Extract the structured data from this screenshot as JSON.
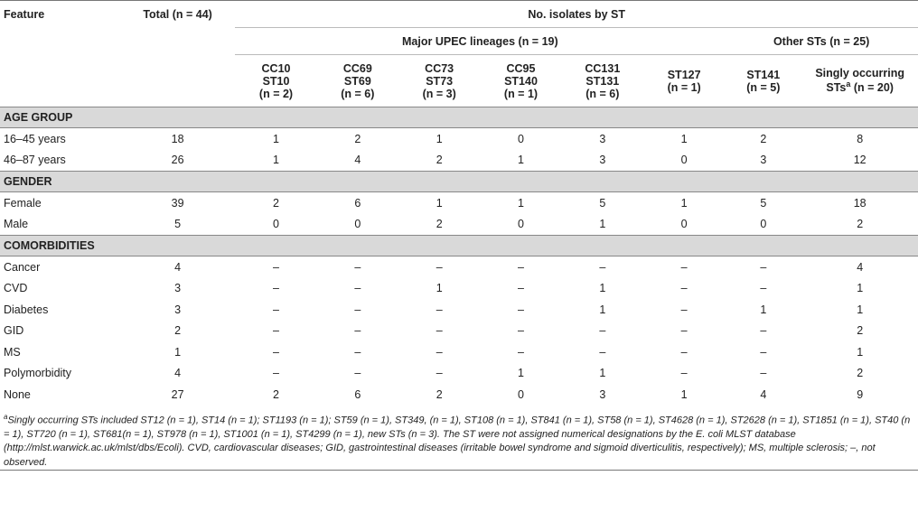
{
  "header": {
    "feature": "Feature",
    "total": "Total (n = 44)",
    "no_isolates": "No. isolates by ST",
    "major": "Major UPEC lineages (n = 19)",
    "other": "Other STs (n = 25)",
    "columns": [
      {
        "l1": "CC10",
        "l2": "ST10",
        "l3": "(n = 2)"
      },
      {
        "l1": "CC69",
        "l2": "ST69",
        "l3": "(n = 6)"
      },
      {
        "l1": "CC73",
        "l2": "ST73",
        "l3": "(n = 3)"
      },
      {
        "l1": "CC95",
        "l2": "ST140",
        "l3": "(n = 1)"
      },
      {
        "l1": "CC131",
        "l2": "ST131",
        "l3": "(n = 6)"
      },
      {
        "l1": "",
        "l2": "ST127",
        "l3": "(n = 1)"
      },
      {
        "l1": "",
        "l2": "ST141",
        "l3": "(n = 5)"
      },
      {
        "l1": "",
        "l2": "Singly occurring",
        "l3": "STs"
      }
    ],
    "last_sup": "a",
    "last_tail": " (n = 20)"
  },
  "sections": [
    {
      "title": "AGE GROUP",
      "rows": [
        {
          "label": "16–45 years",
          "values": [
            "18",
            "1",
            "2",
            "1",
            "0",
            "3",
            "1",
            "2",
            "8"
          ]
        },
        {
          "label": "46–87 years",
          "values": [
            "26",
            "1",
            "4",
            "2",
            "1",
            "3",
            "0",
            "3",
            "12"
          ]
        }
      ]
    },
    {
      "title": "GENDER",
      "rows": [
        {
          "label": "Female",
          "values": [
            "39",
            "2",
            "6",
            "1",
            "1",
            "5",
            "1",
            "5",
            "18"
          ]
        },
        {
          "label": "Male",
          "values": [
            "5",
            "0",
            "0",
            "2",
            "0",
            "1",
            "0",
            "0",
            "2"
          ]
        }
      ]
    },
    {
      "title": "COMORBIDITIES",
      "rows": [
        {
          "label": "Cancer",
          "values": [
            "4",
            "–",
            "–",
            "–",
            "–",
            "–",
            "–",
            "–",
            "4"
          ]
        },
        {
          "label": "CVD",
          "values": [
            "3",
            "–",
            "–",
            "1",
            "–",
            "1",
            "–",
            "–",
            "1"
          ]
        },
        {
          "label": "Diabetes",
          "values": [
            "3",
            "–",
            "–",
            "–",
            "–",
            "1",
            "–",
            "1",
            "1"
          ]
        },
        {
          "label": "GID",
          "values": [
            "2",
            "–",
            "–",
            "–",
            "–",
            "–",
            "–",
            "–",
            "2"
          ]
        },
        {
          "label": "MS",
          "values": [
            "1",
            "–",
            "–",
            "–",
            "–",
            "–",
            "–",
            "–",
            "1"
          ]
        },
        {
          "label": "Polymorbidity",
          "values": [
            "4",
            "–",
            "–",
            "–",
            "1",
            "1",
            "–",
            "–",
            "2"
          ]
        },
        {
          "label": "None",
          "values": [
            "27",
            "2",
            "6",
            "2",
            "0",
            "3",
            "1",
            "4",
            "9"
          ]
        }
      ]
    }
  ],
  "footnote": {
    "sup": "a",
    "text": "Singly occurring STs included ST12 (n = 1), ST14 (n = 1); ST1193 (n = 1); ST59 (n = 1), ST349, (n = 1), ST108 (n = 1), ST841 (n = 1), ST58 (n = 1), ST4628 (n = 1), ST2628 (n = 1), ST1851 (n = 1), ST40 (n = 1), ST720 (n = 1), ST681(n = 1), ST978 (n = 1), ST1001 (n = 1), ST4299 (n = 1), new STs (n = 3). The ST were not assigned numerical designations by the E. coli MLST database (http://mlst.warwick.ac.uk/mlst/dbs/Ecoli). CVD, cardiovascular diseases; GID, gastrointestinal diseases (irritable bowel syndrome and sigmoid diverticulitis, respectively); MS, multiple sclerosis; –, not observed."
  }
}
